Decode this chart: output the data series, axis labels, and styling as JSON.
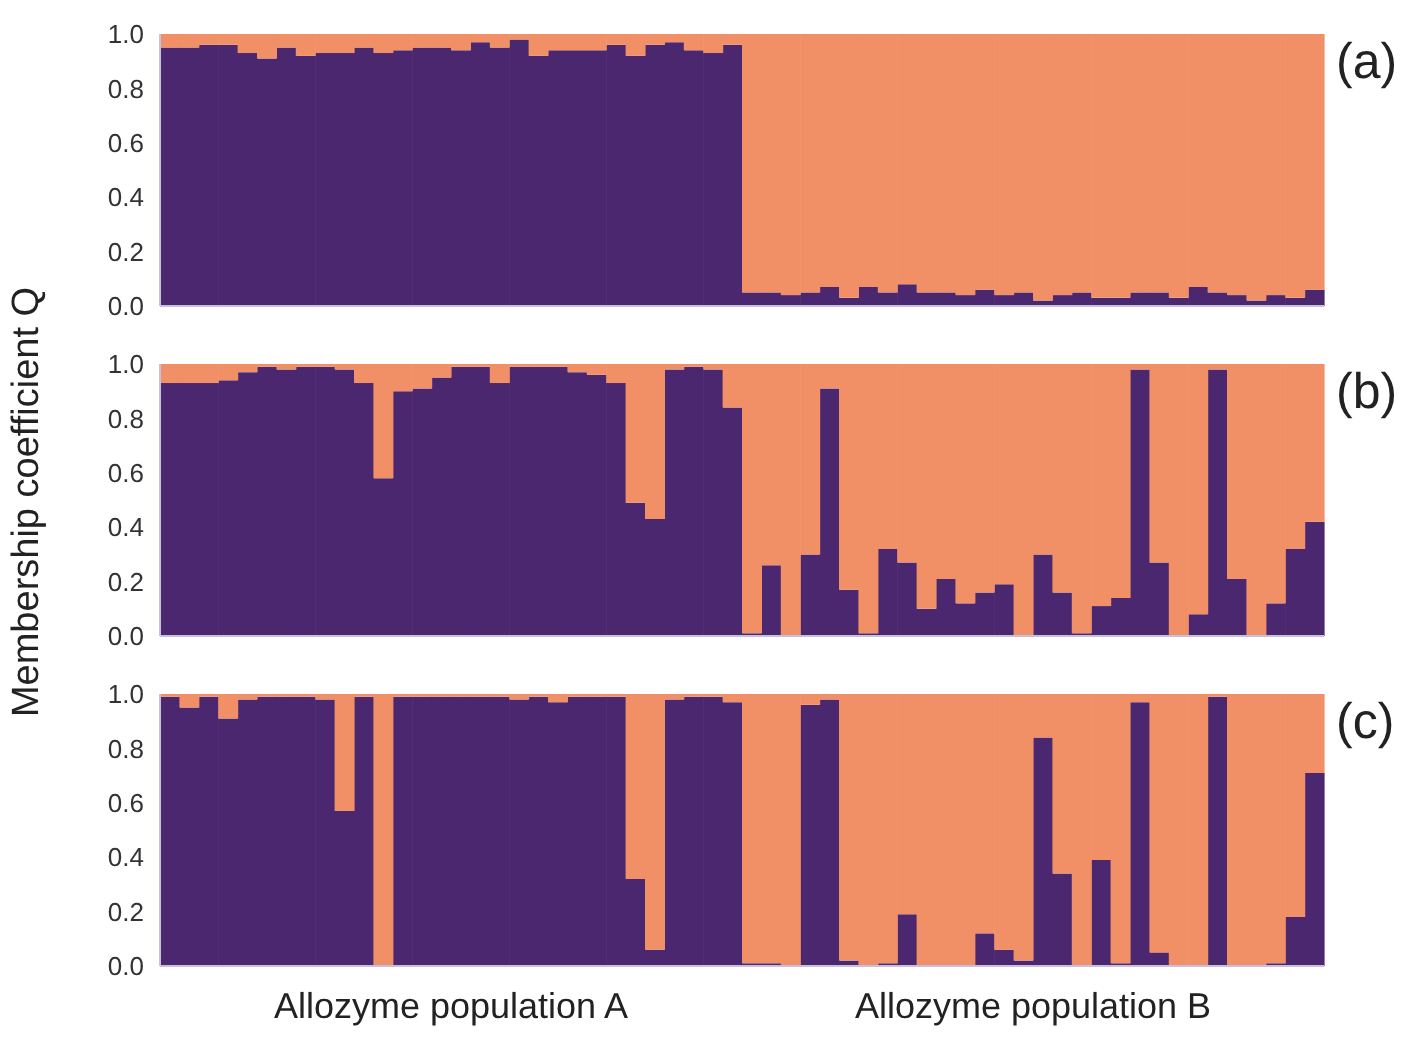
{
  "chart_data": [
    {
      "type": "bar",
      "title": "(a)",
      "stacked": true,
      "tick_labels": "y",
      "categories": [
        null,
        null,
        null,
        null,
        null,
        null,
        null,
        null,
        null,
        null,
        null,
        null,
        null,
        null,
        null,
        null,
        null,
        null,
        null,
        null,
        null,
        null,
        null,
        null,
        null,
        null,
        null,
        null,
        null,
        null,
        null,
        null,
        null,
        null,
        null,
        null,
        null,
        null,
        null,
        null,
        null,
        null,
        null,
        null,
        null,
        null,
        null,
        null,
        null,
        null,
        null,
        null,
        null,
        null,
        null,
        null,
        null,
        null,
        null,
        null
      ],
      "series": [
        {
          "color": "#4b2770",
          "values": [
            0.95,
            0.95,
            0.96,
            0.96,
            0.93,
            0.91,
            0.95,
            0.92,
            0.93,
            0.93,
            0.95,
            0.93,
            0.94,
            0.95,
            0.95,
            0.94,
            0.97,
            0.95,
            0.98,
            0.92,
            0.94,
            0.94,
            0.94,
            0.96,
            0.92,
            0.96,
            0.97,
            0.94,
            0.93,
            0.96,
            0.05,
            0.05,
            0.04,
            0.05,
            0.07,
            0.03,
            0.07,
            0.05,
            0.08,
            0.05,
            0.05,
            0.04,
            0.06,
            0.04,
            0.05,
            0.02,
            0.04,
            0.05,
            0.03,
            0.03,
            0.05,
            0.05,
            0.03,
            0.07,
            0.05,
            0.04,
            0.02,
            0.04,
            0.03,
            0.06
          ]
        },
        {
          "color": "#f19066",
          "values": [
            0.05,
            0.05,
            0.04,
            0.04,
            0.07,
            0.09,
            0.05,
            0.08,
            0.07,
            0.07,
            0.05,
            0.07,
            0.06,
            0.05,
            0.05,
            0.06,
            0.03,
            0.05,
            0.02,
            0.08,
            0.06,
            0.06,
            0.06,
            0.04,
            0.08,
            0.04,
            0.03,
            0.06,
            0.07,
            0.04,
            0.95,
            0.95,
            0.96,
            0.95,
            0.93,
            0.97,
            0.93,
            0.95,
            0.92,
            0.95,
            0.95,
            0.96,
            0.94,
            0.96,
            0.95,
            0.98,
            0.96,
            0.95,
            0.97,
            0.97,
            0.95,
            0.95,
            0.97,
            0.93,
            0.95,
            0.96,
            0.98,
            0.96,
            0.97,
            0.94
          ]
        }
      ],
      "ylim": [
        0,
        1
      ],
      "yticks": [
        {
          "value": 0,
          "label": "0.0"
        },
        {
          "value": 0.2,
          "label": "0.2"
        },
        {
          "value": 0.4,
          "label": "0.4"
        },
        {
          "value": 0.6,
          "label": "0.6"
        },
        {
          "value": 0.8,
          "label": "0.8"
        },
        {
          "value": 1,
          "label": "1.0"
        }
      ]
    },
    {
      "type": "bar",
      "title": "(b)",
      "ylabel": "Membership coefficient Q",
      "stacked": true,
      "tick_labels": "y",
      "categories": [
        null,
        null,
        null,
        null,
        null,
        null,
        null,
        null,
        null,
        null,
        null,
        null,
        null,
        null,
        null,
        null,
        null,
        null,
        null,
        null,
        null,
        null,
        null,
        null,
        null,
        null,
        null,
        null,
        null,
        null,
        null,
        null,
        null,
        null,
        null,
        null,
        null,
        null,
        null,
        null,
        null,
        null,
        null,
        null,
        null,
        null,
        null,
        null,
        null,
        null,
        null,
        null,
        null,
        null,
        null,
        null,
        null,
        null,
        null,
        null
      ],
      "series": [
        {
          "color": "#4b2770",
          "values": [
            0.93,
            0.93,
            0.93,
            0.94,
            0.97,
            0.99,
            0.98,
            0.99,
            0.99,
            0.98,
            0.93,
            0.58,
            0.9,
            0.91,
            0.95,
            0.99,
            0.99,
            0.93,
            0.99,
            0.99,
            0.99,
            0.97,
            0.96,
            0.93,
            0.49,
            0.43,
            0.98,
            0.99,
            0.98,
            0.84,
            0.01,
            0.26,
            0,
            0.3,
            0.91,
            0.17,
            0.01,
            0.32,
            0.27,
            0.1,
            0.21,
            0.12,
            0.16,
            0.19,
            0,
            0.3,
            0.16,
            0.01,
            0.11,
            0.14,
            0.98,
            0.27,
            0,
            0.08,
            0.98,
            0.21,
            0,
            0.12,
            0.32,
            0.42
          ]
        },
        {
          "color": "#f19066",
          "values": [
            0.07,
            0.07,
            0.07,
            0.06,
            0.03,
            0.01,
            0.02,
            0.01,
            0.01,
            0.02,
            0.07,
            0.42,
            0.1,
            0.09,
            0.05,
            0.01,
            0.01,
            0.07,
            0.01,
            0.01,
            0.01,
            0.03,
            0.04,
            0.07,
            0.51,
            0.57,
            0.02,
            0.01,
            0.02,
            0.16,
            0.99,
            0.74,
            1,
            0.7,
            0.09,
            0.83,
            0.99,
            0.68,
            0.73,
            0.9,
            0.79,
            0.88,
            0.84,
            0.81,
            1,
            0.7,
            0.84,
            0.99,
            0.89,
            0.86,
            0.02,
            0.73,
            1,
            0.92,
            0.02,
            0.79,
            1,
            0.88,
            0.68,
            0.58
          ]
        }
      ],
      "ylim": [
        0,
        1
      ],
      "yticks": [
        {
          "value": 0,
          "label": "0.0"
        },
        {
          "value": 0.2,
          "label": "0.2"
        },
        {
          "value": 0.4,
          "label": "0.4"
        },
        {
          "value": 0.6,
          "label": "0.6"
        },
        {
          "value": 0.8,
          "label": "0.8"
        },
        {
          "value": 1,
          "label": "1.0"
        }
      ]
    },
    {
      "type": "bar",
      "title": "(c)",
      "stacked": true,
      "tick_labels": "y",
      "annotations": [
        "Allozyme population A",
        "Allozyme population B"
      ],
      "categories": [
        null,
        null,
        null,
        null,
        null,
        null,
        null,
        null,
        null,
        null,
        null,
        null,
        null,
        null,
        null,
        null,
        null,
        null,
        null,
        null,
        null,
        null,
        null,
        null,
        null,
        null,
        null,
        null,
        null,
        null,
        null,
        null,
        null,
        null,
        null,
        null,
        null,
        null,
        null,
        null,
        null,
        null,
        null,
        null,
        null,
        null,
        null,
        null,
        null,
        null,
        null,
        null,
        null,
        null,
        null,
        null,
        null,
        null,
        null,
        null
      ],
      "series": [
        {
          "color": "#4b2770",
          "values": [
            0.99,
            0.95,
            0.99,
            0.91,
            0.98,
            0.99,
            0.99,
            0.99,
            0.98,
            0.57,
            0.99,
            0,
            0.99,
            0.99,
            0.99,
            0.99,
            0.99,
            0.99,
            0.98,
            0.99,
            0.97,
            0.99,
            0.99,
            0.99,
            0.32,
            0.06,
            0.98,
            0.99,
            0.99,
            0.97,
            0.01,
            0.01,
            0,
            0.96,
            0.98,
            0.02,
            0,
            0.01,
            0.19,
            0,
            0,
            0,
            0.12,
            0.06,
            0.02,
            0.84,
            0.34,
            0,
            0.39,
            0.01,
            0.97,
            0.05,
            0,
            0,
            0.99,
            0,
            0,
            0.01,
            0.18,
            0.71
          ]
        },
        {
          "color": "#f19066",
          "values": [
            0.01,
            0.05,
            0.01,
            0.09,
            0.02,
            0.01,
            0.01,
            0.01,
            0.02,
            0.43,
            0.01,
            1,
            0.01,
            0.01,
            0.01,
            0.01,
            0.01,
            0.01,
            0.02,
            0.01,
            0.03,
            0.01,
            0.01,
            0.01,
            0.68,
            0.94,
            0.02,
            0.01,
            0.01,
            0.03,
            0.99,
            0.99,
            1,
            0.04,
            0.02,
            0.98,
            1,
            0.99,
            0.81,
            1,
            1,
            1,
            0.88,
            0.94,
            0.98,
            0.16,
            0.66,
            1,
            0.61,
            0.99,
            0.03,
            0.95,
            1,
            1,
            0.01,
            1,
            1,
            0.99,
            0.82,
            0.29
          ]
        }
      ],
      "ylim": [
        0,
        1
      ],
      "yticks": [
        {
          "value": 0,
          "label": "0.0"
        },
        {
          "value": 0.2,
          "label": "0.2"
        },
        {
          "value": 0.4,
          "label": "0.4"
        },
        {
          "value": 0.6,
          "label": "0.6"
        },
        {
          "value": 0.8,
          "label": "0.8"
        },
        {
          "value": 1,
          "label": "1.0"
        }
      ]
    }
  ]
}
